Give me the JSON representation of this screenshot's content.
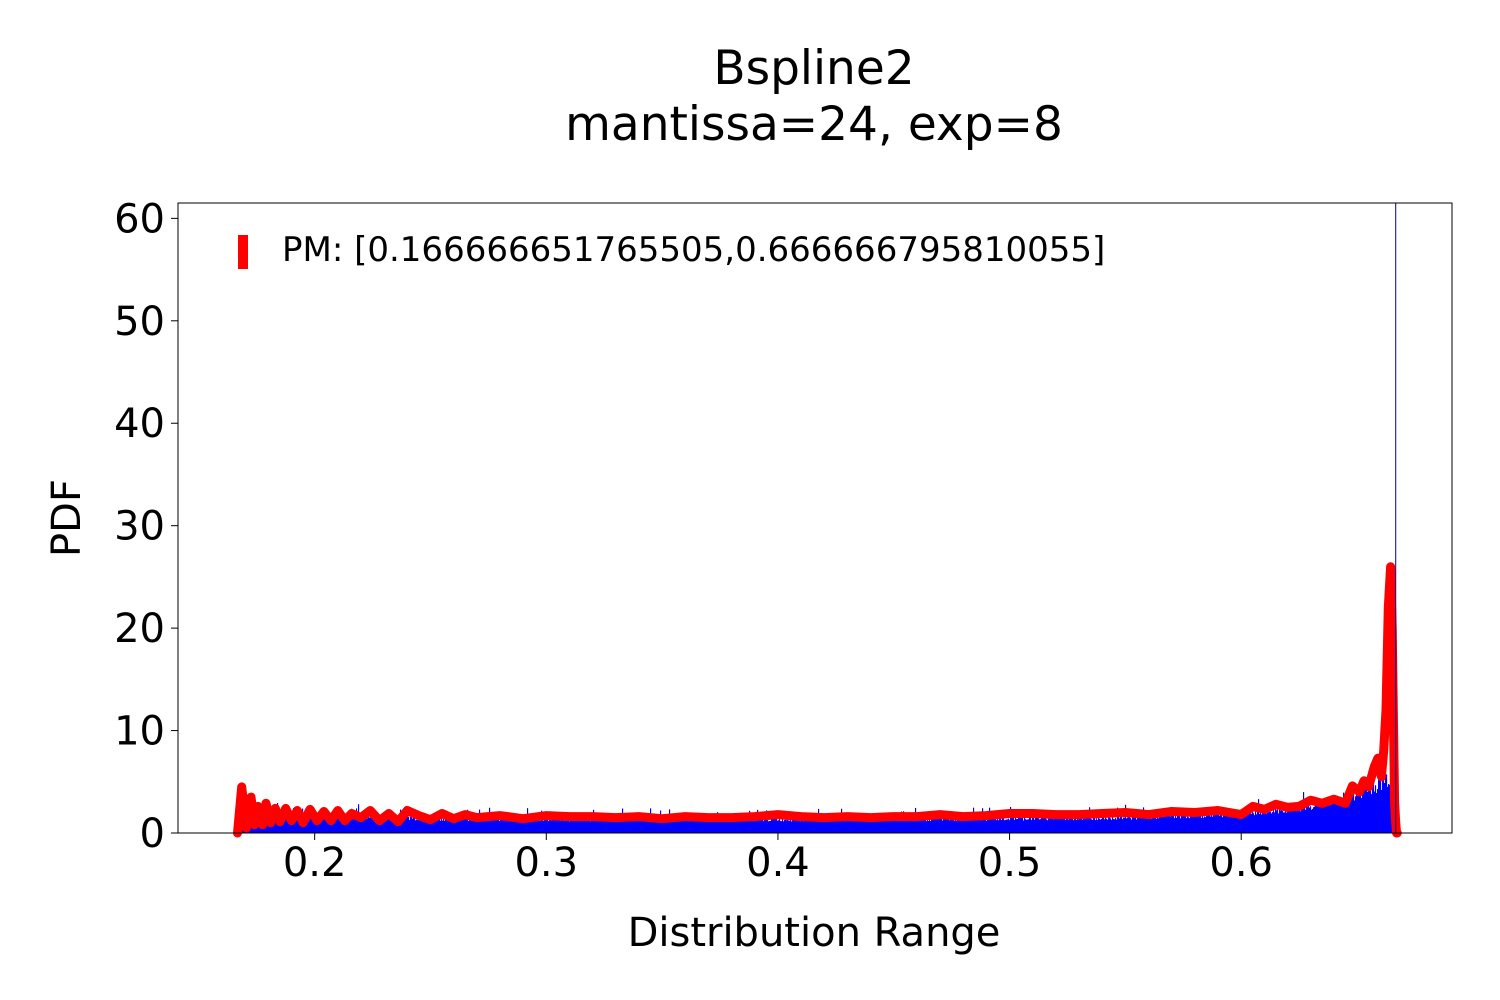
{
  "chart_data": {
    "type": "area",
    "title": "Bspline2",
    "subtitle": "mantissa=24, exp=8",
    "xlabel": "Distribution Range",
    "ylabel": "PDF",
    "xlim": [
      0.141,
      0.691
    ],
    "ylim": [
      0,
      61.5
    ],
    "xticks": [
      0.2,
      0.3,
      0.4,
      0.5,
      0.6
    ],
    "xtick_labels": [
      "0.2",
      "0.3",
      "0.4",
      "0.5",
      "0.6"
    ],
    "yticks": [
      0,
      10,
      20,
      30,
      40,
      50,
      60
    ],
    "ytick_labels": [
      "0",
      "10",
      "20",
      "30",
      "40",
      "50",
      "60"
    ],
    "grid": false,
    "legend_position": "top-left",
    "legend": [
      {
        "label": "PM: [0.166666651765505,0.666666795810055]",
        "color": "#ff0000"
      }
    ],
    "vertical_line": {
      "x": 0.6667,
      "color": "#00008b"
    },
    "series": [
      {
        "kind": "histogram",
        "color": "#0000ff",
        "bin_range": [
          0.1667,
          0.6667
        ],
        "envelope_x": [
          0.1667,
          0.17,
          0.18,
          0.19,
          0.2,
          0.22,
          0.25,
          0.3,
          0.35,
          0.4,
          0.45,
          0.5,
          0.55,
          0.58,
          0.6,
          0.62,
          0.63,
          0.64,
          0.65,
          0.655,
          0.66,
          0.6667
        ],
        "envelope_y": [
          1.5,
          2.0,
          2.0,
          1.9,
          1.8,
          1.7,
          1.5,
          1.4,
          1.4,
          1.4,
          1.4,
          1.5,
          1.6,
          1.8,
          2.0,
          2.4,
          2.8,
          3.2,
          3.8,
          4.5,
          5.0,
          6.0
        ]
      },
      {
        "kind": "kde",
        "color": "#ff0000",
        "x": [
          0.1667,
          0.1685,
          0.1705,
          0.1725,
          0.174,
          0.1755,
          0.1775,
          0.179,
          0.181,
          0.183,
          0.185,
          0.1875,
          0.19,
          0.1925,
          0.195,
          0.198,
          0.201,
          0.204,
          0.207,
          0.21,
          0.213,
          0.216,
          0.22,
          0.224,
          0.228,
          0.232,
          0.236,
          0.24,
          0.245,
          0.25,
          0.255,
          0.26,
          0.265,
          0.27,
          0.28,
          0.29,
          0.3,
          0.31,
          0.32,
          0.33,
          0.34,
          0.35,
          0.36,
          0.37,
          0.38,
          0.39,
          0.4,
          0.41,
          0.42,
          0.43,
          0.44,
          0.45,
          0.46,
          0.47,
          0.48,
          0.49,
          0.5,
          0.51,
          0.52,
          0.53,
          0.54,
          0.55,
          0.56,
          0.57,
          0.58,
          0.59,
          0.595,
          0.6,
          0.605,
          0.61,
          0.615,
          0.62,
          0.625,
          0.63,
          0.635,
          0.64,
          0.645,
          0.648,
          0.651,
          0.653,
          0.655,
          0.6575,
          0.659,
          0.6605,
          0.6615,
          0.6625,
          0.6635,
          0.6645,
          0.6652,
          0.6658,
          0.6662,
          0.6667,
          0.6671,
          0.6674
        ],
        "y": [
          0,
          4.5,
          0.5,
          3.5,
          0.8,
          2.6,
          0.8,
          2.9,
          1.0,
          2.4,
          1.1,
          2.4,
          1.2,
          2.2,
          1.0,
          2.3,
          1.2,
          2.1,
          1.2,
          2.2,
          1.2,
          1.9,
          1.5,
          2.2,
          1.2,
          1.9,
          1.1,
          2.2,
          1.7,
          1.3,
          1.9,
          1.4,
          1.8,
          1.5,
          1.7,
          1.4,
          1.7,
          1.6,
          1.6,
          1.5,
          1.6,
          1.4,
          1.6,
          1.5,
          1.5,
          1.6,
          1.8,
          1.6,
          1.5,
          1.6,
          1.5,
          1.6,
          1.6,
          1.8,
          1.6,
          1.7,
          1.9,
          1.9,
          1.8,
          1.8,
          1.9,
          2.0,
          1.8,
          2.1,
          2.0,
          2.2,
          2.0,
          1.8,
          2.6,
          2.3,
          2.8,
          2.5,
          2.6,
          3.2,
          2.9,
          3.3,
          2.9,
          4.6,
          4.0,
          5.1,
          4.5,
          6.5,
          7.3,
          5.5,
          8.0,
          12.0,
          22.0,
          26.0,
          20.0,
          10.0,
          3.0,
          1.0,
          0,
          0
        ]
      }
    ]
  }
}
